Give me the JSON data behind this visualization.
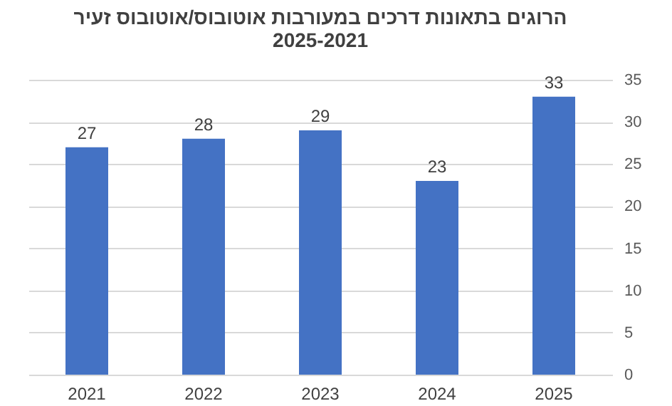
{
  "chart_data": {
    "type": "bar",
    "title": "הרוגים בתאונות דרכים במעורבות אוטובוס/אוטובוס זעיר",
    "subtitle": "2025-2021",
    "categories": [
      "2021",
      "2022",
      "2023",
      "2024",
      "2025"
    ],
    "values": [
      27,
      28,
      29,
      23,
      33
    ],
    "color": "#4472c4",
    "ylim": [
      0,
      35
    ],
    "yticks": [
      0,
      5,
      10,
      15,
      20,
      25,
      30,
      35
    ],
    "grid": "y",
    "data_labels": true
  }
}
